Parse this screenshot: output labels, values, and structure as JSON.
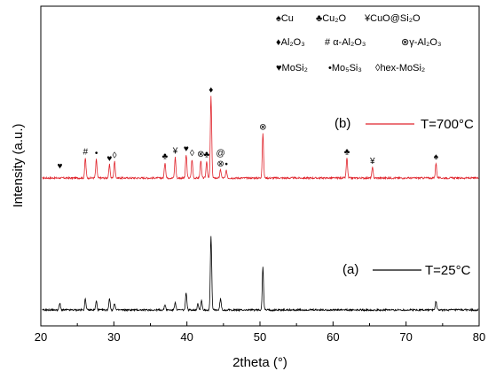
{
  "chart_data": {
    "type": "line",
    "xlabel": "2theta (°)",
    "ylabel": "Intensity (a.u.)",
    "xlim": [
      20,
      80
    ],
    "x_ticks": [
      20,
      30,
      40,
      50,
      60,
      70,
      80
    ],
    "grid": false,
    "legend_placement": "top-right",
    "phase_legend": [
      {
        "symbol": "♠",
        "label": "Cu"
      },
      {
        "symbol": "♣",
        "label": "Cu₂O"
      },
      {
        "symbol": "¥",
        "label": "CuO@Si₂O"
      },
      {
        "symbol": "♦",
        "label": "Al₂O₃"
      },
      {
        "symbol": "#",
        "label": "α-Al₂O₃"
      },
      {
        "symbol": "⊗",
        "label": "γ-Al₂O₃"
      },
      {
        "symbol": "♥",
        "label": "MoSi₂"
      },
      {
        "symbol": "•",
        "label": "Mo₅Si₃"
      },
      {
        "symbol": "◊",
        "label": "hex-MoSi₂"
      }
    ],
    "series": [
      {
        "name": "T=700°C",
        "tag": "(b)",
        "color": "#e0242c",
        "baseline": 0,
        "peaks": [
          {
            "x": 26.1,
            "h": 27
          },
          {
            "x": 27.6,
            "h": 25
          },
          {
            "x": 29.4,
            "h": 18
          },
          {
            "x": 30.1,
            "h": 22
          },
          {
            "x": 37.0,
            "h": 21
          },
          {
            "x": 38.4,
            "h": 28
          },
          {
            "x": 39.9,
            "h": 31
          },
          {
            "x": 40.7,
            "h": 25
          },
          {
            "x": 41.9,
            "h": 24
          },
          {
            "x": 42.7,
            "h": 23
          },
          {
            "x": 43.3,
            "h": 110
          },
          {
            "x": 44.6,
            "h": 11
          },
          {
            "x": 45.4,
            "h": 10
          },
          {
            "x": 50.4,
            "h": 60
          },
          {
            "x": 61.9,
            "h": 27
          },
          {
            "x": 65.4,
            "h": 14
          },
          {
            "x": 74.1,
            "h": 20
          }
        ],
        "markers": [
          {
            "x": 22.6,
            "symbol": "♥"
          },
          {
            "x": 26.1,
            "symbol": "#"
          },
          {
            "x": 27.6,
            "symbol": "•"
          },
          {
            "x": 29.4,
            "symbol": "♥"
          },
          {
            "x": 30.1,
            "symbol": "◊"
          },
          {
            "x": 37.0,
            "symbol": "♣"
          },
          {
            "x": 38.4,
            "symbol": "¥"
          },
          {
            "x": 39.9,
            "symbol": "♥"
          },
          {
            "x": 40.7,
            "symbol": "◊"
          },
          {
            "x": 41.9,
            "symbol": "⊗"
          },
          {
            "x": 42.7,
            "symbol": "♣"
          },
          {
            "x": 43.3,
            "symbol": "♦"
          },
          {
            "x": 44.6,
            "symbol": "⊗"
          },
          {
            "x": 44.6,
            "symbol": "@"
          },
          {
            "x": 45.4,
            "symbol": "•"
          },
          {
            "x": 50.4,
            "symbol": "⊗"
          },
          {
            "x": 61.9,
            "symbol": "♣"
          },
          {
            "x": 65.4,
            "symbol": "¥"
          },
          {
            "x": 74.1,
            "symbol": "♠"
          }
        ]
      },
      {
        "name": "T=25°C",
        "tag": "(a)",
        "color": "#000000",
        "baseline": 0,
        "peaks": [
          {
            "x": 22.6,
            "h": 9
          },
          {
            "x": 26.1,
            "h": 15
          },
          {
            "x": 27.6,
            "h": 12
          },
          {
            "x": 29.4,
            "h": 16
          },
          {
            "x": 30.1,
            "h": 9
          },
          {
            "x": 37.0,
            "h": 7
          },
          {
            "x": 38.4,
            "h": 11
          },
          {
            "x": 39.9,
            "h": 23
          },
          {
            "x": 41.5,
            "h": 9
          },
          {
            "x": 42.0,
            "h": 13
          },
          {
            "x": 43.3,
            "h": 100
          },
          {
            "x": 44.6,
            "h": 15
          },
          {
            "x": 50.4,
            "h": 57
          },
          {
            "x": 74.1,
            "h": 12
          }
        ]
      }
    ]
  }
}
